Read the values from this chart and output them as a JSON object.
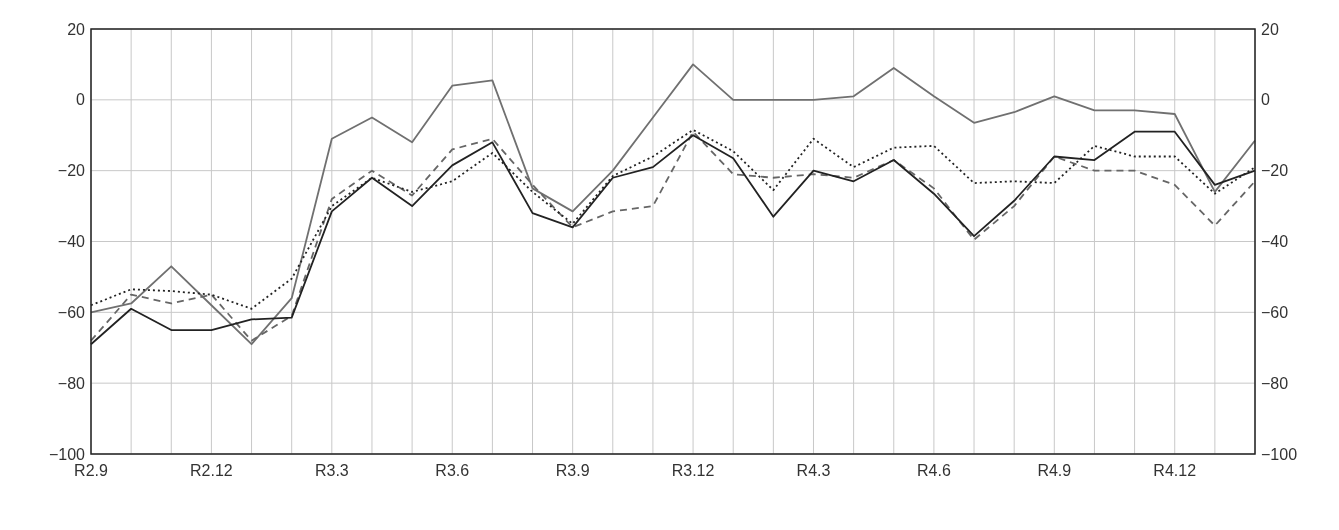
{
  "chart_data": {
    "type": "line",
    "categories": [
      "R2.9",
      null,
      null,
      "R2.12",
      null,
      null,
      "R3.3",
      null,
      null,
      "R3.6",
      null,
      null,
      "R3.9",
      null,
      null,
      "R3.12",
      null,
      null,
      "R4.3",
      null,
      null,
      "R4.6",
      null,
      null,
      "R4.9",
      null,
      null,
      "R4.12",
      null,
      null
    ],
    "ylim": [
      -100,
      20
    ],
    "yticks": [
      {
        "value": -100,
        "label": "−100"
      },
      {
        "value": -80,
        "label": "−80"
      },
      {
        "value": -60,
        "label": "−60"
      },
      {
        "value": -40,
        "label": "−40"
      },
      {
        "value": -20,
        "label": "−20"
      },
      0,
      20
    ],
    "y2lim": [
      -100,
      20
    ],
    "y2ticks": [
      {
        "value": -100,
        "label": "−100"
      },
      {
        "value": -80,
        "label": "−80"
      },
      {
        "value": -60,
        "label": "−60"
      },
      {
        "value": -40,
        "label": "−40"
      },
      {
        "value": -20,
        "label": "−20"
      },
      0,
      20
    ],
    "grid": true,
    "series": [
      {
        "color": "#707070",
        "line_style": "solid",
        "values": [
          -60,
          -57.5,
          -47,
          -58,
          -69,
          -56,
          -11,
          -5,
          -12,
          4,
          5.5,
          -25,
          -31.5,
          -20,
          -5,
          10,
          0,
          0,
          0,
          1,
          9,
          1,
          -6.5,
          -3.5,
          1,
          -3,
          -3,
          -4,
          -26,
          -11.5
        ]
      },
      {
        "color": "#666666",
        "line_style": "dashed",
        "values": [
          -68,
          -55,
          -57.5,
          -55,
          -68,
          -61,
          -28,
          -20,
          -27,
          -14,
          -11,
          -24,
          -36,
          -31.5,
          -30,
          -9,
          -21,
          -22,
          -21,
          -22,
          -17,
          -25,
          -39.5,
          -30,
          -16,
          -20,
          -20,
          -24,
          -35.5,
          -23
        ]
      },
      {
        "color": "#222222",
        "line_style": "dotted",
        "values": [
          -58,
          -53.5,
          -54,
          -55,
          -59,
          -50.5,
          -30,
          -22,
          -26,
          -23,
          -15,
          -26,
          -35,
          -21.5,
          -16,
          -8.5,
          -14.5,
          -25.5,
          -11,
          -19,
          -13.5,
          -13,
          -23.5,
          -23,
          -23.5,
          -13,
          -16,
          -16,
          -26.5,
          -19
        ]
      },
      {
        "color": "#222222",
        "line_style": "solid",
        "values": [
          -69,
          -59,
          -65,
          -65,
          -62,
          -61.5,
          -31.5,
          -22,
          -30,
          -18.5,
          -12,
          -32,
          -36,
          -22,
          -19,
          -10,
          -16.5,
          -33,
          -20,
          -23,
          -17,
          -26.5,
          -38.5,
          -28.5,
          -16,
          -17,
          -9,
          -9,
          -24,
          -20
        ]
      }
    ]
  }
}
